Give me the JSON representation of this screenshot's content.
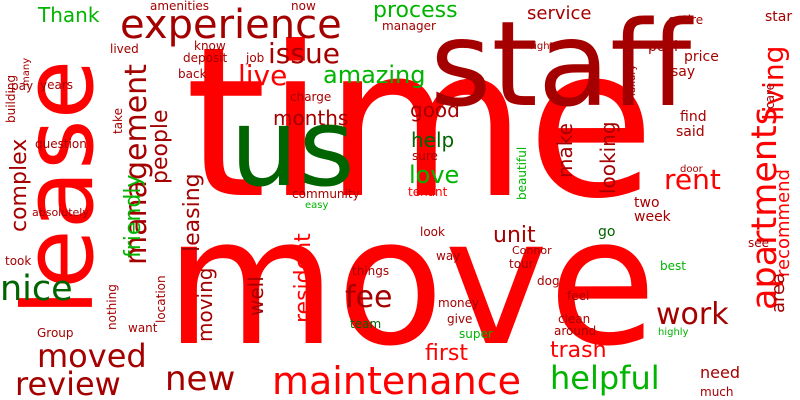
{
  "colors": {
    "red": "#ff0000",
    "dark_red": "#a50000",
    "crimson": "#cc0000",
    "dark_green": "#006400",
    "green": "#00b400",
    "bright_green": "#00cc00"
  },
  "words": [
    {
      "text": "time",
      "color": "red"
    },
    {
      "text": "move",
      "color": "red"
    },
    {
      "text": "staff",
      "color": "dark_red"
    },
    {
      "text": "lease",
      "color": "red"
    },
    {
      "text": "us",
      "color": "dark_green"
    },
    {
      "text": "experience",
      "color": "dark_red"
    },
    {
      "text": "apartments",
      "color": "red"
    },
    {
      "text": "living",
      "color": "red"
    },
    {
      "text": "maintenance",
      "color": "red"
    },
    {
      "text": "management",
      "color": "dark_red"
    },
    {
      "text": "issue",
      "color": "dark_red"
    },
    {
      "text": "live",
      "color": "red"
    },
    {
      "text": "rent",
      "color": "red"
    },
    {
      "text": "fee",
      "color": "dark_red"
    },
    {
      "text": "work",
      "color": "dark_red"
    },
    {
      "text": "new",
      "color": "dark_red"
    },
    {
      "text": "nice",
      "color": "dark_green"
    },
    {
      "text": "moved",
      "color": "dark_red"
    },
    {
      "text": "review",
      "color": "dark_red"
    },
    {
      "text": "helpful",
      "color": "green"
    },
    {
      "text": "amazing",
      "color": "green"
    },
    {
      "text": "process",
      "color": "green"
    },
    {
      "text": "complex",
      "color": "dark_red"
    },
    {
      "text": "leasing",
      "color": "dark_red"
    },
    {
      "text": "people",
      "color": "dark_red"
    },
    {
      "text": "friendly",
      "color": "green"
    },
    {
      "text": "area",
      "color": "dark_red"
    },
    {
      "text": "recommend",
      "color": "red"
    },
    {
      "text": "love",
      "color": "green"
    },
    {
      "text": "good",
      "color": "dark_red"
    },
    {
      "text": "help",
      "color": "dark_green"
    },
    {
      "text": "months",
      "color": "dark_red"
    },
    {
      "text": "make",
      "color": "dark_red"
    },
    {
      "text": "looking",
      "color": "dark_red"
    },
    {
      "text": "unit",
      "color": "dark_red"
    },
    {
      "text": "resident",
      "color": "red"
    },
    {
      "text": "well",
      "color": "dark_red"
    },
    {
      "text": "moving",
      "color": "dark_red"
    },
    {
      "text": "first",
      "color": "red"
    },
    {
      "text": "trash",
      "color": "red"
    },
    {
      "text": "Thank",
      "color": "green"
    },
    {
      "text": "service",
      "color": "dark_red"
    },
    {
      "text": "need",
      "color": "dark_red"
    },
    {
      "text": "find",
      "color": "dark_red"
    },
    {
      "text": "said",
      "color": "dark_red"
    },
    {
      "text": "two",
      "color": "dark_red"
    },
    {
      "text": "week",
      "color": "dark_red"
    },
    {
      "text": "pool",
      "color": "dark_red"
    },
    {
      "text": "price",
      "color": "dark_red"
    },
    {
      "text": "say",
      "color": "dark_red"
    },
    {
      "text": "star",
      "color": "dark_red"
    },
    {
      "text": "care",
      "color": "dark_red"
    },
    {
      "text": "entire",
      "color": "dark_red"
    },
    {
      "text": "years",
      "color": "dark_red"
    },
    {
      "text": "question",
      "color": "dark_red"
    },
    {
      "text": "back",
      "color": "dark_red"
    },
    {
      "text": "lived",
      "color": "dark_red"
    },
    {
      "text": "know",
      "color": "dark_red"
    },
    {
      "text": "deposit",
      "color": "dark_red"
    },
    {
      "text": "job",
      "color": "dark_red"
    },
    {
      "text": "manager",
      "color": "dark_red"
    },
    {
      "text": "amenities",
      "color": "dark_red"
    },
    {
      "text": "now",
      "color": "dark_red"
    },
    {
      "text": "charge",
      "color": "dark_red"
    },
    {
      "text": "building",
      "color": "dark_red"
    },
    {
      "text": "many",
      "color": "dark_red"
    },
    {
      "text": "pay",
      "color": "dark_red"
    },
    {
      "text": "take",
      "color": "dark_red"
    },
    {
      "text": "absolutely",
      "color": "dark_red"
    },
    {
      "text": "community",
      "color": "dark_red"
    },
    {
      "text": "easy",
      "color": "green"
    },
    {
      "text": "sure",
      "color": "dark_red"
    },
    {
      "text": "tenant",
      "color": "red"
    },
    {
      "text": "beautiful",
      "color": "green"
    },
    {
      "text": "door",
      "color": "dark_red"
    },
    {
      "text": "right",
      "color": "dark_red"
    },
    {
      "text": "luxury",
      "color": "dark_red"
    },
    {
      "text": "look",
      "color": "dark_red"
    },
    {
      "text": "go",
      "color": "dark_green"
    },
    {
      "text": "took",
      "color": "dark_red"
    },
    {
      "text": "things",
      "color": "dark_red"
    },
    {
      "text": "way",
      "color": "dark_red"
    },
    {
      "text": "Connor",
      "color": "dark_red"
    },
    {
      "text": "tour",
      "color": "dark_red"
    },
    {
      "text": "dog",
      "color": "dark_red"
    },
    {
      "text": "see",
      "color": "dark_red"
    },
    {
      "text": "best",
      "color": "green"
    },
    {
      "text": "location",
      "color": "dark_red"
    },
    {
      "text": "nothing",
      "color": "dark_red"
    },
    {
      "text": "Group",
      "color": "dark_red"
    },
    {
      "text": "want",
      "color": "dark_red"
    },
    {
      "text": "money",
      "color": "dark_red"
    },
    {
      "text": "give",
      "color": "dark_red"
    },
    {
      "text": "super",
      "color": "green"
    },
    {
      "text": "team",
      "color": "dark_green"
    },
    {
      "text": "feel",
      "color": "dark_red"
    },
    {
      "text": "clean",
      "color": "dark_red"
    },
    {
      "text": "around",
      "color": "dark_red"
    },
    {
      "text": "highly",
      "color": "green"
    },
    {
      "text": "much",
      "color": "dark_red"
    }
  ]
}
